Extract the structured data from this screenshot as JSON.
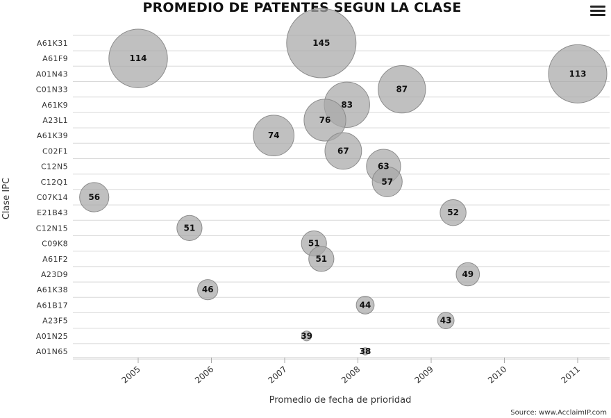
{
  "header": {
    "title": "PROMEDIO DE PATENTES SEGUN LA CLASE",
    "menu_icon": "hamburger-menu-icon"
  },
  "source_text": "Source: www.AcclaimIP.com",
  "chart_data": {
    "type": "scatter",
    "bubble": true,
    "title": "PROMEDIO DE PATENTES SEGUN LA CLASE",
    "xlabel": "Promedio de fecha de prioridad",
    "ylabel": "Clase IPC",
    "categories": [
      "A61K31",
      "A61F9",
      "A01N43",
      "C01N33",
      "A61K9",
      "A23L1",
      "A61K39",
      "C02F1",
      "C12N5",
      "C12Q1",
      "C07K14",
      "E21B43",
      "C12N15",
      "C09K8",
      "A61F2",
      "A23D9",
      "A61K38",
      "A61B17",
      "A23F5",
      "A01N25",
      "A01N65"
    ],
    "x_ticks": [
      "2005",
      "2006",
      "2007",
      "2008",
      "2009",
      "2010",
      "2011"
    ],
    "xlim": [
      2004.1,
      2011.45
    ],
    "grid": true,
    "bubble_color": "#a8a8a8",
    "points": [
      {
        "category": "A61K31",
        "x": 2007.5,
        "value": 145
      },
      {
        "category": "A61F9",
        "x": 2005.0,
        "value": 114
      },
      {
        "category": "A01N43",
        "x": 2011.0,
        "value": 113
      },
      {
        "category": "C01N33",
        "x": 2008.6,
        "value": 87
      },
      {
        "category": "A61K9",
        "x": 2007.85,
        "value": 83
      },
      {
        "category": "A23L1",
        "x": 2007.55,
        "value": 76
      },
      {
        "category": "A61K39",
        "x": 2006.85,
        "value": 74
      },
      {
        "category": "C02F1",
        "x": 2007.8,
        "value": 67
      },
      {
        "category": "C12N5",
        "x": 2008.35,
        "value": 63
      },
      {
        "category": "C12Q1",
        "x": 2008.4,
        "value": 57
      },
      {
        "category": "C07K14",
        "x": 2004.4,
        "value": 56
      },
      {
        "category": "E21B43",
        "x": 2009.3,
        "value": 52
      },
      {
        "category": "C12N15",
        "x": 2005.7,
        "value": 51
      },
      {
        "category": "C09K8",
        "x": 2007.4,
        "value": 51
      },
      {
        "category": "A61F2",
        "x": 2007.5,
        "value": 51
      },
      {
        "category": "A23D9",
        "x": 2009.5,
        "value": 49
      },
      {
        "category": "A61K38",
        "x": 2005.95,
        "value": 46
      },
      {
        "category": "A61B17",
        "x": 2008.1,
        "value": 44
      },
      {
        "category": "A23F5",
        "x": 2009.2,
        "value": 43
      },
      {
        "category": "A01N25",
        "x": 2007.3,
        "value": 39
      },
      {
        "category": "A01N65",
        "x": 2008.1,
        "value": 38
      }
    ]
  }
}
